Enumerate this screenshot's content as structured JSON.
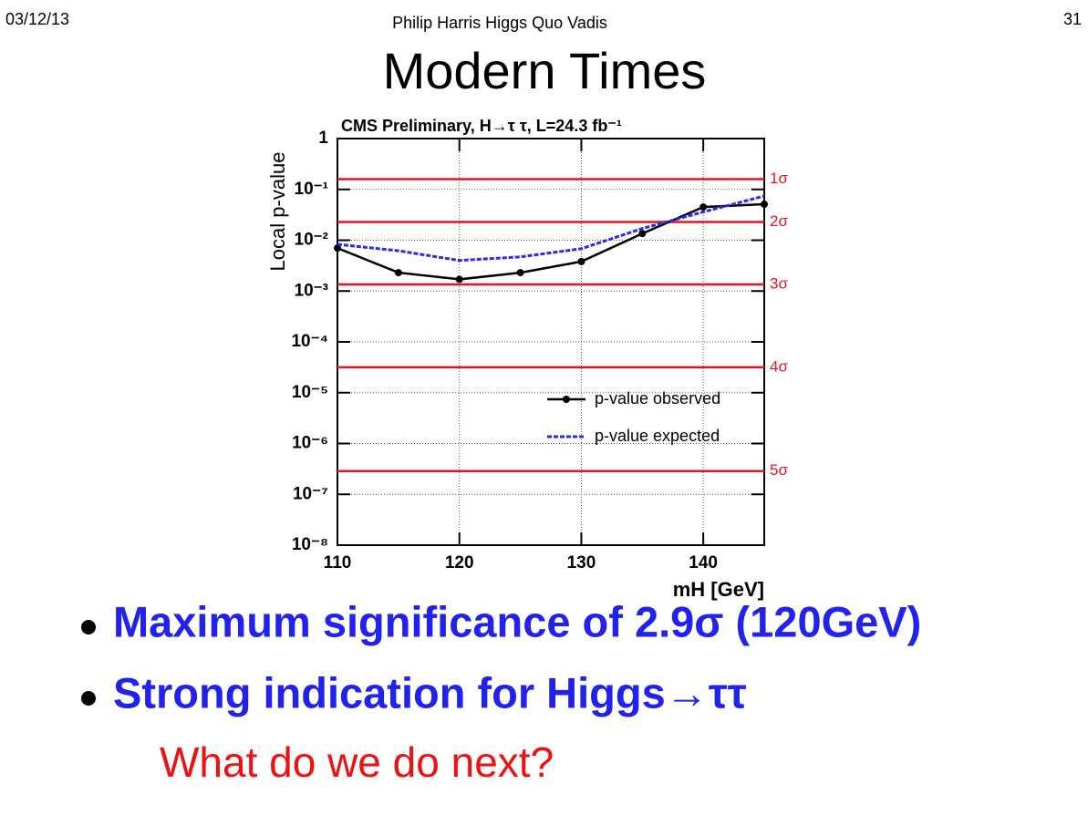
{
  "slide": {
    "date": "03/12/13",
    "header": "Philip Harris Higgs Quo Vadis",
    "page": "31",
    "title": "Modern Times",
    "bullets": [
      "Maximum significance of 2.9σ (120GeV)",
      "Strong indication for Higgs→ττ"
    ],
    "note": "What do we do next?"
  },
  "chart_data": {
    "type": "line",
    "title": "CMS  Preliminary, H→τ τ, L=24.3 fb⁻¹",
    "x_label": "mH [GeV]",
    "y_label": "Local p-value",
    "x": [
      110,
      115,
      120,
      125,
      130,
      135,
      140,
      145
    ],
    "series": [
      {
        "name": "p-value observed",
        "color": "#000000",
        "marker": "circle",
        "line_style": "solid",
        "values": [
          0.007,
          0.0023,
          0.0017,
          0.0023,
          0.0038,
          0.0135,
          0.045,
          0.051
        ]
      },
      {
        "name": "p-value expected",
        "color": "#2a2af0",
        "line_style": "dashed",
        "values": [
          0.0083,
          0.0062,
          0.004,
          0.0047,
          0.0068,
          0.017,
          0.036,
          0.074
        ]
      }
    ],
    "reference_lines": [
      {
        "value": 0.159,
        "label": "1σ"
      },
      {
        "value": 0.0228,
        "label": "2σ"
      },
      {
        "value": 0.00135,
        "label": "3σ"
      },
      {
        "value": 3.17e-05,
        "label": "4σ"
      },
      {
        "value": 2.87e-07,
        "label": "5σ"
      }
    ],
    "reference_color": "#e8141b",
    "xlim": [
      110,
      145
    ],
    "xticks": [
      110,
      120,
      130,
      140
    ],
    "ylim": [
      1e-08,
      1
    ],
    "y_scale": "log",
    "yticks": [
      {
        "value": 1e-08,
        "label": "10⁻⁸"
      },
      {
        "value": 1e-07,
        "label": "10⁻⁷"
      },
      {
        "value": 1e-06,
        "label": "10⁻⁶"
      },
      {
        "value": 1e-05,
        "label": "10⁻⁵"
      },
      {
        "value": 0.0001,
        "label": "10⁻⁴"
      },
      {
        "value": 0.001,
        "label": "10⁻³"
      },
      {
        "value": 0.01,
        "label": "10⁻²"
      },
      {
        "value": 0.1,
        "label": "10⁻¹"
      },
      1
    ],
    "grid": true,
    "legend": "center right"
  }
}
